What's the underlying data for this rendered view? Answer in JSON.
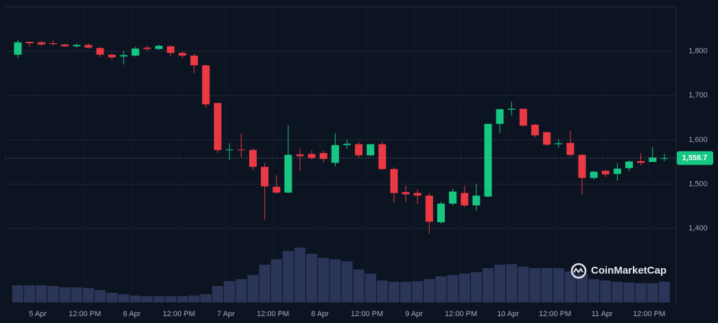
{
  "chart_data": {
    "type": "candlestick",
    "categories": [
      null,
      null,
      null,
      null,
      null,
      null,
      null,
      null,
      null,
      null,
      null,
      null,
      null,
      null,
      null,
      null,
      null,
      null,
      null,
      null,
      null,
      null,
      null,
      null,
      null,
      null,
      null,
      null,
      null,
      null,
      null,
      null,
      null,
      null,
      null,
      null,
      null,
      null,
      null,
      null,
      null,
      null,
      null,
      null,
      null,
      null,
      null,
      null,
      null,
      null,
      null,
      null,
      null,
      null,
      null,
      null
    ],
    "open": [
      1792,
      1821,
      1820,
      1818,
      1815,
      1811,
      1814,
      1807,
      1792,
      1788,
      1790,
      1808,
      1805,
      1811,
      1796,
      1790,
      1768,
      1683,
      1577,
      1578,
      1577,
      1539,
      1494,
      1481,
      1567,
      1568,
      1570,
      1548,
      1588,
      1590,
      1565,
      1590,
      1534,
      1482,
      1480,
      1474,
      1414,
      1456,
      1480,
      1452,
      1472,
      1636,
      1668,
      1670,
      1634,
      1617,
      1590,
      1593,
      1566,
      1514,
      1530,
      1523,
      1536,
      1552,
      1550,
      1558
    ],
    "high": [
      1826,
      1822,
      1823,
      1824,
      1816,
      1817,
      1817,
      1810,
      1795,
      1800,
      1810,
      1812,
      1815,
      1813,
      1800,
      1794,
      1770,
      1683,
      1592,
      1613,
      1580,
      1548,
      1520,
      1633,
      1580,
      1576,
      1576,
      1615,
      1600,
      1595,
      1591,
      1595,
      1538,
      1497,
      1488,
      1480,
      1460,
      1490,
      1496,
      1500,
      1636,
      1670,
      1686,
      1670,
      1636,
      1618,
      1601,
      1621,
      1568,
      1530,
      1533,
      1547,
      1553,
      1570,
      1583,
      1568
    ],
    "low": [
      1785,
      1810,
      1812,
      1813,
      1810,
      1808,
      1806,
      1787,
      1780,
      1770,
      1788,
      1800,
      1803,
      1788,
      1785,
      1750,
      1672,
      1570,
      1555,
      1560,
      1532,
      1420,
      1478,
      1480,
      1530,
      1554,
      1549,
      1540,
      1580,
      1560,
      1563,
      1532,
      1458,
      1460,
      1455,
      1388,
      1411,
      1452,
      1448,
      1440,
      1470,
      1615,
      1655,
      1630,
      1605,
      1586,
      1582,
      1562,
      1476,
      1510,
      1516,
      1508,
      1530,
      1542,
      1550,
      1552
    ],
    "close": [
      1820,
      1818,
      1815,
      1816,
      1811,
      1814,
      1808,
      1792,
      1786,
      1791,
      1806,
      1805,
      1812,
      1796,
      1790,
      1768,
      1680,
      1577,
      1578,
      1577,
      1539,
      1495,
      1481,
      1566,
      1563,
      1559,
      1557,
      1588,
      1591,
      1565,
      1590,
      1534,
      1480,
      1477,
      1474,
      1415,
      1456,
      1483,
      1452,
      1474,
      1636,
      1669,
      1670,
      1632,
      1610,
      1589,
      1592,
      1566,
      1514,
      1528,
      1522,
      1535,
      1551,
      1548,
      1560,
      1558.7
    ],
    "volume": [
      25,
      25,
      25,
      24,
      22,
      22,
      21,
      18,
      14,
      12,
      10,
      9,
      9,
      9,
      9,
      10,
      12,
      24,
      31,
      34,
      40,
      55,
      63,
      75,
      80,
      71,
      65,
      63,
      60,
      48,
      42,
      32,
      30,
      30,
      31,
      34,
      38,
      40,
      42,
      44,
      50,
      55,
      56,
      52,
      50,
      50,
      50,
      45,
      41,
      34,
      32,
      30,
      29,
      28,
      28,
      30
    ],
    "up_color": "#16c784",
    "down_color": "#ea3943",
    "volume_color": "#2b3558",
    "ylim": [
      1233,
      1900
    ],
    "yticks": [
      {
        "value": 1400,
        "label": "1,400"
      },
      {
        "value": 1500,
        "label": "1,500"
      },
      {
        "value": 1600,
        "label": "1,600"
      },
      {
        "value": 1700,
        "label": "1,700"
      },
      {
        "value": 1800,
        "label": "1,800"
      }
    ],
    "xlim": [
      -1.05,
      56
    ],
    "xticks": [
      {
        "value": 1.7,
        "label": "5 Apr"
      },
      {
        "value": 5.7,
        "label": "12:00 PM"
      },
      {
        "value": 9.7,
        "label": "6 Apr"
      },
      {
        "value": 13.7,
        "label": "12:00 PM"
      },
      {
        "value": 17.7,
        "label": "7 Apr"
      },
      {
        "value": 21.7,
        "label": "12:00 PM"
      },
      {
        "value": 25.7,
        "label": "8 Apr"
      },
      {
        "value": 29.7,
        "label": "12:00 PM"
      },
      {
        "value": 33.7,
        "label": "9 Apr"
      },
      {
        "value": 37.7,
        "label": "12:00 PM"
      },
      {
        "value": 41.7,
        "label": "10 Apr"
      },
      {
        "value": 45.7,
        "label": "12:00 PM"
      },
      {
        "value": 49.7,
        "label": "11 Apr"
      },
      {
        "value": 53.7,
        "label": "12:00 PM"
      }
    ],
    "last_price": {
      "value": 1558.7,
      "label": "1,558.7"
    },
    "grid": true,
    "watermark": "CoinMarketCap"
  }
}
